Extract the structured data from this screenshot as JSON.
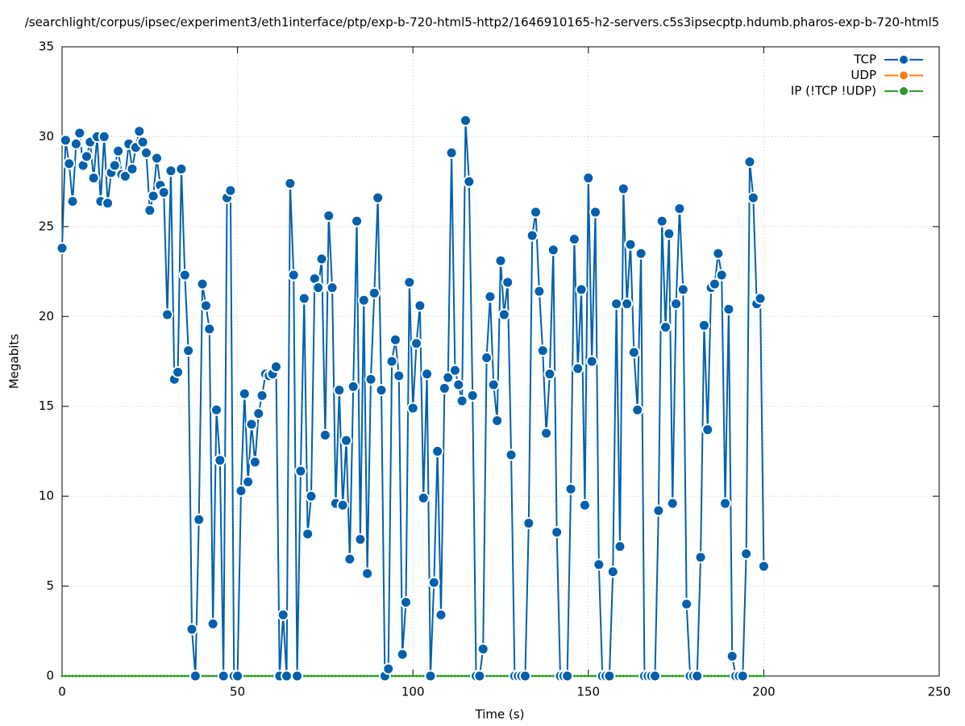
{
  "chart_data": {
    "type": "line",
    "title": "/searchlight/corpus/ipsec/experiment3/eth1interface/ptp/exp-b-720-html5-http2/1646910165-h2-servers.c5s3ipsecptp.hdumb.pharos-exp-b-720-html5",
    "x_label": "Time (s)",
    "y_label": "Megabits",
    "xlim": [
      0,
      250
    ],
    "xticks": [
      0,
      50,
      100,
      150,
      200,
      250
    ],
    "ylim": [
      0,
      35
    ],
    "yticks": [
      0,
      5,
      10,
      15,
      20,
      25,
      30,
      35
    ],
    "grid": true,
    "legend": "top-right",
    "x": [
      0,
      1,
      2,
      3,
      4,
      5,
      6,
      7,
      8,
      9,
      10,
      11,
      12,
      13,
      14,
      15,
      16,
      17,
      18,
      19,
      20,
      21,
      22,
      23,
      24,
      25,
      26,
      27,
      28,
      29,
      30,
      31,
      32,
      33,
      34,
      35,
      36,
      37,
      38,
      39,
      40,
      41,
      42,
      43,
      44,
      45,
      46,
      47,
      48,
      49,
      50,
      51,
      52,
      53,
      54,
      55,
      56,
      57,
      58,
      59,
      60,
      61,
      62,
      63,
      64,
      65,
      66,
      67,
      68,
      69,
      70,
      71,
      72,
      73,
      74,
      75,
      76,
      77,
      78,
      79,
      80,
      81,
      82,
      83,
      84,
      85,
      86,
      87,
      88,
      89,
      90,
      91,
      92,
      93,
      94,
      95,
      96,
      97,
      98,
      99,
      100,
      101,
      102,
      103,
      104,
      105,
      106,
      107,
      108,
      109,
      110,
      111,
      112,
      113,
      114,
      115,
      116,
      117,
      118,
      119,
      120,
      121,
      122,
      123,
      124,
      125,
      126,
      127,
      128,
      129,
      130,
      131,
      132,
      133,
      134,
      135,
      136,
      137,
      138,
      139,
      140,
      141,
      142,
      143,
      144,
      145,
      146,
      147,
      148,
      149,
      150,
      151,
      152,
      153,
      154,
      155,
      156,
      157,
      158,
      159,
      160,
      161,
      162,
      163,
      164,
      165,
      166,
      167,
      168,
      169,
      170,
      171,
      172,
      173,
      174,
      175,
      176,
      177,
      178,
      179,
      180,
      181,
      182,
      183,
      184,
      185,
      186,
      187,
      188,
      189,
      190,
      191,
      192,
      193,
      194,
      195,
      196,
      197,
      198,
      199,
      200
    ],
    "series": [
      {
        "name": "TCP",
        "color": "#0060ad",
        "values": [
          23.8,
          29.8,
          28.5,
          26.4,
          29.6,
          30.2,
          28.4,
          28.9,
          29.7,
          27.7,
          30.0,
          26.4,
          30.0,
          26.3,
          28.0,
          28.4,
          29.2,
          27.9,
          27.8,
          29.6,
          28.2,
          29.4,
          30.3,
          29.7,
          29.1,
          25.9,
          26.7,
          28.8,
          27.3,
          26.9,
          20.1,
          28.1,
          16.5,
          16.9,
          28.2,
          22.3,
          18.1,
          2.6,
          0,
          8.7,
          21.8,
          20.6,
          19.3,
          2.9,
          14.8,
          12.0,
          0,
          26.6,
          27.0,
          0,
          0,
          10.3,
          15.7,
          10.8,
          14.0,
          11.9,
          14.6,
          15.6,
          16.8,
          16.7,
          16.8,
          17.2,
          0,
          3.4,
          0,
          27.4,
          22.3,
          0,
          11.4,
          21.0,
          7.9,
          10.0,
          22.1,
          21.6,
          23.2,
          13.4,
          25.6,
          21.6,
          9.6,
          15.9,
          9.5,
          13.1,
          6.5,
          16.1,
          25.3,
          7.6,
          20.9,
          5.7,
          16.5,
          21.3,
          26.6,
          15.9,
          0,
          0.4,
          17.5,
          18.7,
          16.7,
          1.2,
          4.1,
          21.9,
          14.9,
          18.5,
          20.6,
          9.9,
          16.8,
          0,
          5.2,
          12.5,
          3.4,
          16.0,
          16.6,
          29.1,
          17.0,
          16.2,
          15.3,
          30.9,
          27.5,
          15.6,
          0,
          0,
          1.5,
          17.7,
          21.1,
          16.2,
          14.2,
          23.1,
          20.1,
          21.9,
          12.3,
          0,
          0,
          0,
          0,
          8.5,
          24.5,
          25.8,
          21.4,
          18.1,
          13.5,
          16.8,
          23.7,
          8.0,
          0,
          0,
          0,
          10.4,
          24.3,
          17.1,
          21.5,
          9.5,
          27.7,
          17.5,
          25.8,
          6.2,
          0,
          0,
          0,
          5.8,
          20.7,
          7.2,
          27.1,
          20.7,
          24.0,
          18.0,
          14.8,
          23.5,
          0,
          0,
          0,
          0,
          9.2,
          25.3,
          19.4,
          24.6,
          9.6,
          20.7,
          26.0,
          21.5,
          4.0,
          0,
          0,
          0,
          6.6,
          19.5,
          13.7,
          21.6,
          21.8,
          23.5,
          22.3,
          9.6,
          20.4,
          1.1,
          0,
          0,
          0,
          6.8,
          28.6,
          26.6,
          20.7,
          21.0,
          6.1
        ]
      },
      {
        "name": "UDP",
        "color": "#ff7f0e",
        "values": [
          0,
          0,
          0,
          0,
          0,
          0,
          0,
          0,
          0,
          0,
          0,
          0,
          0,
          0,
          0,
          0,
          0,
          0,
          0,
          0,
          0,
          0,
          0,
          0,
          0,
          0,
          0,
          0,
          0,
          0,
          0,
          0,
          0,
          0,
          0,
          0,
          0,
          0,
          0,
          0,
          0,
          0,
          0,
          0,
          0,
          0,
          0,
          0,
          0,
          0,
          0,
          0,
          0,
          0,
          0,
          0,
          0,
          0,
          0,
          0,
          0,
          0,
          0,
          0,
          0,
          0,
          0,
          0,
          0,
          0,
          0,
          0,
          0,
          0,
          0,
          0,
          0,
          0,
          0,
          0,
          0,
          0,
          0,
          0,
          0,
          0,
          0,
          0,
          0,
          0,
          0,
          0,
          0,
          0,
          0,
          0,
          0,
          0,
          0,
          0,
          0,
          0,
          0,
          0,
          0,
          0,
          0,
          0,
          0,
          0,
          0,
          0,
          0,
          0,
          0,
          0,
          0,
          0,
          0,
          0,
          0,
          0,
          0,
          0,
          0,
          0,
          0,
          0,
          0,
          0,
          0,
          0,
          0,
          0,
          0,
          0,
          0,
          0,
          0,
          0,
          0,
          0,
          0,
          0,
          0,
          0,
          0,
          0,
          0,
          0,
          0,
          0,
          0,
          0,
          0,
          0,
          0,
          0,
          0,
          0,
          0,
          0,
          0,
          0,
          0,
          0,
          0,
          0,
          0,
          0,
          0,
          0,
          0,
          0,
          0,
          0,
          0,
          0,
          0,
          0,
          0,
          0,
          0,
          0,
          0,
          0,
          0,
          0,
          0,
          0,
          0,
          0,
          0,
          0,
          0,
          0,
          0,
          0,
          0,
          0,
          0
        ]
      },
      {
        "name": "IP (!TCP  !UDP)",
        "color": "#2ca02c",
        "values": [
          0,
          0,
          0,
          0,
          0,
          0,
          0,
          0,
          0,
          0,
          0,
          0,
          0,
          0,
          0,
          0,
          0,
          0,
          0,
          0,
          0,
          0,
          0,
          0,
          0,
          0,
          0,
          0,
          0,
          0,
          0,
          0,
          0,
          0,
          0,
          0,
          0,
          0,
          0,
          0,
          0,
          0,
          0,
          0,
          0,
          0,
          0,
          0,
          0,
          0,
          0,
          0,
          0,
          0,
          0,
          0,
          0,
          0,
          0,
          0,
          0,
          0,
          0,
          0,
          0,
          0,
          0,
          0,
          0,
          0,
          0,
          0,
          0,
          0,
          0,
          0,
          0,
          0,
          0,
          0,
          0,
          0,
          0,
          0,
          0,
          0,
          0,
          0,
          0,
          0,
          0,
          0,
          0,
          0,
          0,
          0,
          0,
          0,
          0,
          0,
          0,
          0,
          0,
          0,
          0,
          0,
          0,
          0,
          0,
          0,
          0,
          0,
          0,
          0,
          0,
          0,
          0,
          0,
          0,
          0,
          0,
          0,
          0,
          0,
          0,
          0,
          0,
          0,
          0,
          0,
          0,
          0,
          0,
          0,
          0,
          0,
          0,
          0,
          0,
          0,
          0,
          0,
          0,
          0,
          0,
          0,
          0,
          0,
          0,
          0,
          0,
          0,
          0,
          0,
          0,
          0,
          0,
          0,
          0,
          0,
          0,
          0,
          0,
          0,
          0,
          0,
          0,
          0,
          0,
          0,
          0,
          0,
          0,
          0,
          0,
          0,
          0,
          0,
          0,
          0,
          0,
          0,
          0,
          0,
          0,
          0,
          0,
          0,
          0,
          0,
          0,
          0,
          0,
          0,
          0,
          0,
          0,
          0,
          0,
          0,
          0
        ]
      }
    ]
  }
}
